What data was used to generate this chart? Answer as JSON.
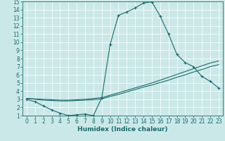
{
  "xlabel": "Humidex (Indice chaleur)",
  "bg_color": "#cbe8e8",
  "line_color": "#1a6b6b",
  "xlim": [
    -0.5,
    23.5
  ],
  "ylim": [
    1,
    15
  ],
  "xticks": [
    0,
    1,
    2,
    3,
    4,
    5,
    6,
    7,
    8,
    9,
    10,
    11,
    12,
    13,
    14,
    15,
    16,
    17,
    18,
    19,
    20,
    21,
    22,
    23
  ],
  "yticks": [
    1,
    2,
    3,
    4,
    5,
    6,
    7,
    8,
    9,
    10,
    11,
    12,
    13,
    14,
    15
  ],
  "curve1_x": [
    0,
    1,
    2,
    3,
    4,
    5,
    6,
    7,
    8,
    9,
    10,
    11,
    12,
    13,
    14,
    15,
    16,
    17,
    18,
    19,
    20,
    21,
    22,
    23
  ],
  "curve1_y": [
    3.0,
    2.7,
    2.2,
    1.7,
    1.3,
    1.0,
    1.1,
    1.2,
    1.0,
    3.2,
    9.7,
    13.3,
    13.7,
    14.2,
    14.8,
    14.95,
    13.2,
    11.0,
    8.5,
    7.5,
    7.0,
    5.8,
    5.2,
    4.4
  ],
  "curve2_x": [
    0,
    1,
    2,
    3,
    4,
    5,
    6,
    7,
    8,
    9,
    10,
    11,
    12,
    13,
    14,
    15,
    16,
    17,
    18,
    19,
    20,
    21,
    22,
    23
  ],
  "curve2_y": [
    3.1,
    3.05,
    3.0,
    2.95,
    2.9,
    2.9,
    2.95,
    3.0,
    3.1,
    3.2,
    3.5,
    3.8,
    4.1,
    4.4,
    4.7,
    5.0,
    5.35,
    5.7,
    6.05,
    6.4,
    6.75,
    7.1,
    7.45,
    7.7
  ],
  "curve3_x": [
    0,
    1,
    2,
    3,
    4,
    5,
    6,
    7,
    8,
    9,
    10,
    11,
    12,
    13,
    14,
    15,
    16,
    17,
    18,
    19,
    20,
    21,
    22,
    23
  ],
  "curve3_y": [
    3.1,
    3.0,
    2.9,
    2.85,
    2.8,
    2.8,
    2.85,
    2.9,
    2.95,
    3.05,
    3.35,
    3.6,
    3.9,
    4.2,
    4.5,
    4.75,
    5.05,
    5.35,
    5.7,
    6.0,
    6.35,
    6.65,
    7.0,
    7.25
  ],
  "grid_color": "#b0d8d8",
  "tick_fontsize": 5.5,
  "xlabel_fontsize": 6.5
}
